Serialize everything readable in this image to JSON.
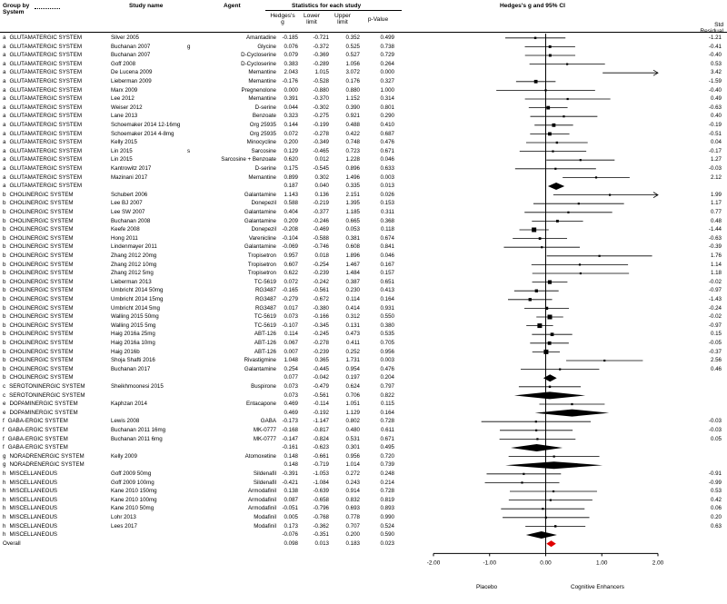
{
  "header": {
    "group_by": "Group by",
    "system": "System",
    "study_name": "Study name",
    "agent": "Agent",
    "stats_title": "Statistics for each study",
    "col_g": "Hedges's g",
    "col_lower": "Lower limit",
    "col_upper": "Upper limit",
    "col_p": "p-Value",
    "plot_title": "Hedges's g and 95% CI",
    "std_residual": "Std Residual"
  },
  "footer": {
    "left_label": "Placebo",
    "right_label": "Cognitive Enhancers"
  },
  "chart_data": {
    "type": "forest",
    "title": "Hedges's g and 95% CI",
    "xlim": [
      -2,
      2
    ],
    "x_ticks": [
      "-2.00",
      "-1.00",
      "0.00",
      "1.00",
      "2.00"
    ],
    "rows": [
      {
        "group": "a",
        "system": "GLUTAMATERGIC SYSTEM",
        "study": "Silver 2005",
        "agent": "Amantadine",
        "g": "-0.185",
        "lower": "-0.721",
        "upper": "0.352",
        "p": "0.499",
        "resid": "-1.21",
        "kind": "study"
      },
      {
        "group": "a",
        "system": "GLUTAMATERGIC SYSTEM",
        "study": "Buchanan 2007",
        "mark": "g",
        "agent": "Glycine",
        "g": "0.076",
        "lower": "-0.372",
        "upper": "0.525",
        "p": "0.738",
        "resid": "-0.41",
        "kind": "study"
      },
      {
        "group": "a",
        "system": "GLUTAMATERGIC SYSTEM",
        "study": "Buchanan 2007",
        "agent": "D-Cycloserine",
        "g": "0.079",
        "lower": "-0.369",
        "upper": "0.527",
        "p": "0.729",
        "resid": "-0.40",
        "kind": "study"
      },
      {
        "group": "a",
        "system": "GLUTAMATERGIC SYSTEM",
        "study": "Goff 2008",
        "agent": "D-Cycloserine",
        "g": "0.383",
        "lower": "-0.289",
        "upper": "1.056",
        "p": "0.264",
        "resid": "0.53",
        "kind": "study"
      },
      {
        "group": "a",
        "system": "GLUTAMATERGIC SYSTEM",
        "study": "De Lucena 2009",
        "agent": "Memantine",
        "g": "2.043",
        "lower": "1.015",
        "upper": "3.072",
        "p": "0.000",
        "resid": "3.42",
        "kind": "study"
      },
      {
        "group": "a",
        "system": "GLUTAMATERGIC SYSTEM",
        "study": "Lieberman 2009",
        "agent": "Memantine",
        "g": "-0.176",
        "lower": "-0.528",
        "upper": "0.176",
        "p": "0.327",
        "resid": "-1.59",
        "kind": "study"
      },
      {
        "group": "a",
        "system": "GLUTAMATERGIC SYSTEM",
        "study": "Marx 2009",
        "agent": "Pregnenolone",
        "g": "0.000",
        "lower": "-0.880",
        "upper": "0.880",
        "p": "1.000",
        "resid": "-0.40",
        "kind": "study"
      },
      {
        "group": "a",
        "system": "GLUTAMATERGIC SYSTEM",
        "study": "Lee 2012",
        "agent": "Memantine",
        "g": "0.391",
        "lower": "-0.370",
        "upper": "1.152",
        "p": "0.314",
        "resid": "0.49",
        "kind": "study"
      },
      {
        "group": "a",
        "system": "GLUTAMATERGIC SYSTEM",
        "study": "Weiser 2012",
        "agent": "D-serine",
        "g": "0.044",
        "lower": "-0.302",
        "upper": "0.390",
        "p": "0.801",
        "resid": "-0.63",
        "kind": "study"
      },
      {
        "group": "a",
        "system": "GLUTAMATERGIC SYSTEM",
        "study": "Lane 2013",
        "agent": "Benzoate",
        "g": "0.323",
        "lower": "-0.275",
        "upper": "0.921",
        "p": "0.290",
        "resid": "0.40",
        "kind": "study"
      },
      {
        "group": "a",
        "system": "GLUTAMATERGIC SYSTEM",
        "study": "Schoemaker 2014 12-16mg",
        "agent": "Org 25935",
        "g": "0.144",
        "lower": "-0.199",
        "upper": "0.488",
        "p": "0.410",
        "resid": "-0.19",
        "kind": "study"
      },
      {
        "group": "a",
        "system": "GLUTAMATERGIC SYSTEM",
        "study": "Schoemaker 2014 4-8mg",
        "agent": "Org 25935",
        "g": "0.072",
        "lower": "-0.278",
        "upper": "0.422",
        "p": "0.687",
        "resid": "-0.51",
        "kind": "study"
      },
      {
        "group": "a",
        "system": "GLUTAMATERGIC SYSTEM",
        "study": "Kelly 2015",
        "agent": "Minocycline",
        "g": "0.200",
        "lower": "-0.349",
        "upper": "0.748",
        "p": "0.476",
        "resid": "0.04",
        "kind": "study"
      },
      {
        "group": "a",
        "system": "GLUTAMATERGIC SYSTEM",
        "study": "Lin 2015",
        "mark": "s",
        "agent": "Sarcosine",
        "g": "0.129",
        "lower": "-0.465",
        "upper": "0.723",
        "p": "0.671",
        "resid": "-0.17",
        "kind": "study"
      },
      {
        "group": "a",
        "system": "GLUTAMATERGIC SYSTEM",
        "study": "Lin 2015",
        "agent": "Sarcosine + Benzoate",
        "g": "0.620",
        "lower": "0.012",
        "upper": "1.228",
        "p": "0.046",
        "resid": "1.27",
        "kind": "study"
      },
      {
        "group": "a",
        "system": "GLUTAMATERGIC SYSTEM",
        "study": "Kantrowitz 2017",
        "agent": "D-serine",
        "g": "0.175",
        "lower": "-0.545",
        "upper": "0.896",
        "p": "0.633",
        "resid": "-0.03",
        "kind": "study"
      },
      {
        "group": "a",
        "system": "GLUTAMATERGIC SYSTEM",
        "study": "Mazinani 2017",
        "agent": "Memantine",
        "g": "0.899",
        "lower": "0.302",
        "upper": "1.496",
        "p": "0.003",
        "resid": "2.12",
        "kind": "study"
      },
      {
        "group": "a",
        "system": "GLUTAMATERGIC SYSTEM",
        "study": "",
        "agent": "",
        "g": "0.187",
        "lower": "0.040",
        "upper": "0.335",
        "p": "0.013",
        "resid": "",
        "kind": "subtotal"
      },
      {
        "group": "b",
        "system": "CHOLINERGIC SYSTEM",
        "study": "Schubert 2006",
        "agent": "Galantamine",
        "g": "1.143",
        "lower": "0.136",
        "upper": "2.151",
        "p": "0.026",
        "resid": "1.99",
        "kind": "study"
      },
      {
        "group": "b",
        "system": "CHOLINERGIC SYSTEM",
        "study": "Lee BJ 2007",
        "agent": "Donepezil",
        "g": "0.588",
        "lower": "-0.219",
        "upper": "1.395",
        "p": "0.153",
        "resid": "1.17",
        "kind": "study"
      },
      {
        "group": "b",
        "system": "CHOLINERGIC SYSTEM",
        "study": "Lee SW 2007",
        "agent": "Galantamine",
        "g": "0.404",
        "lower": "-0.377",
        "upper": "1.185",
        "p": "0.311",
        "resid": "0.77",
        "kind": "study"
      },
      {
        "group": "b",
        "system": "CHOLINERGIC SYSTEM",
        "study": "Buchanan 2008",
        "agent": "Galantamine",
        "g": "0.209",
        "lower": "-0.246",
        "upper": "0.665",
        "p": "0.368",
        "resid": "0.48",
        "kind": "study"
      },
      {
        "group": "b",
        "system": "CHOLINERGIC SYSTEM",
        "study": "Keefe 2008",
        "agent": "Donepezil",
        "g": "-0.208",
        "lower": "-0.469",
        "upper": "0.053",
        "p": "0.118",
        "resid": "-1.44",
        "kind": "study"
      },
      {
        "group": "b",
        "system": "CHOLINERGIC SYSTEM",
        "study": "Hong 2011",
        "agent": "Varenicline",
        "g": "-0.104",
        "lower": "-0.588",
        "upper": "0.381",
        "p": "0.674",
        "resid": "-0.63",
        "kind": "study"
      },
      {
        "group": "b",
        "system": "CHOLINERGIC SYSTEM",
        "study": "Lindenmayer 2011",
        "agent": "Galantamine",
        "g": "-0.069",
        "lower": "-0.746",
        "upper": "0.608",
        "p": "0.841",
        "resid": "-0.39",
        "kind": "study"
      },
      {
        "group": "b",
        "system": "CHOLINERGIC SYSTEM",
        "study": "Zhang 2012 20mg",
        "agent": "Tropisetron",
        "g": "0.957",
        "lower": "0.018",
        "upper": "1.896",
        "p": "0.046",
        "resid": "1.76",
        "kind": "study"
      },
      {
        "group": "b",
        "system": "CHOLINERGIC SYSTEM",
        "study": "Zhang 2012 10mg",
        "agent": "Tropisetron",
        "g": "0.607",
        "lower": "-0.254",
        "upper": "1.467",
        "p": "0.167",
        "resid": "1.14",
        "kind": "study"
      },
      {
        "group": "b",
        "system": "CHOLINERGIC SYSTEM",
        "study": "Zhang 2012 5mg",
        "agent": "Tropisetron",
        "g": "0.622",
        "lower": "-0.239",
        "upper": "1.484",
        "p": "0.157",
        "resid": "1.18",
        "kind": "study"
      },
      {
        "group": "b",
        "system": "CHOLINERGIC SYSTEM",
        "study": "Lieberman 2013",
        "agent": "TC-5619",
        "g": "0.072",
        "lower": "-0.242",
        "upper": "0.387",
        "p": "0.651",
        "resid": "-0.02",
        "kind": "study"
      },
      {
        "group": "b",
        "system": "CHOLINERGIC SYSTEM",
        "study": "Umbricht 2014 50mg",
        "agent": "RG3487",
        "g": "-0.165",
        "lower": "-0.561",
        "upper": "0.230",
        "p": "0.413",
        "resid": "-0.97",
        "kind": "study"
      },
      {
        "group": "b",
        "system": "CHOLINERGIC SYSTEM",
        "study": "Umbricht 2014 15mg",
        "agent": "RG3487",
        "g": "-0.279",
        "lower": "-0.672",
        "upper": "0.114",
        "p": "0.164",
        "resid": "-1.43",
        "kind": "study"
      },
      {
        "group": "b",
        "system": "CHOLINERGIC SYSTEM",
        "study": "Umbricht 2014 5mg",
        "agent": "RG3487",
        "g": "0.017",
        "lower": "-0.380",
        "upper": "0.414",
        "p": "0.931",
        "resid": "-0.24",
        "kind": "study"
      },
      {
        "group": "b",
        "system": "CHOLINERGIC SYSTEM",
        "study": "Walling 2015 50mg",
        "agent": "TC-5619",
        "g": "0.073",
        "lower": "-0.166",
        "upper": "0.312",
        "p": "0.550",
        "resid": "-0.02",
        "kind": "study"
      },
      {
        "group": "b",
        "system": "CHOLINERGIC SYSTEM",
        "study": "Walling 2015 5mg",
        "agent": "TC-5619",
        "g": "-0.107",
        "lower": "-0.345",
        "upper": "0.131",
        "p": "0.380",
        "resid": "-0.97",
        "kind": "study"
      },
      {
        "group": "b",
        "system": "CHOLINERGIC SYSTEM",
        "study": "Haig 2016a 25mg",
        "agent": "ABT-126",
        "g": "0.114",
        "lower": "-0.245",
        "upper": "0.473",
        "p": "0.535",
        "resid": "0.15",
        "kind": "study"
      },
      {
        "group": "b",
        "system": "CHOLINERGIC SYSTEM",
        "study": "Haig 2016a 10mg",
        "agent": "ABT-126",
        "g": "0.067",
        "lower": "-0.278",
        "upper": "0.411",
        "p": "0.705",
        "resid": "-0.05",
        "kind": "study"
      },
      {
        "group": "b",
        "system": "CHOLINERGIC SYSTEM",
        "study": "Haig 2016b",
        "agent": "ABT-126",
        "g": "0.007",
        "lower": "-0.239",
        "upper": "0.252",
        "p": "0.956",
        "resid": "-0.37",
        "kind": "study"
      },
      {
        "group": "b",
        "system": "CHOLINERGIC SYSTEM",
        "study": "Shoja Shafti 2016",
        "agent": "Rivastigmine",
        "g": "1.048",
        "lower": "0.365",
        "upper": "1.731",
        "p": "0.003",
        "resid": "2.56",
        "kind": "study"
      },
      {
        "group": "b",
        "system": "CHOLINERGIC SYSTEM",
        "study": "Buchanan 2017",
        "agent": "Galantamine",
        "g": "0.254",
        "lower": "-0.445",
        "upper": "0.954",
        "p": "0.476",
        "resid": "0.46",
        "kind": "study"
      },
      {
        "group": "b",
        "system": "CHOLINERGIC SYSTEM",
        "study": "",
        "agent": "",
        "g": "0.077",
        "lower": "-0.042",
        "upper": "0.197",
        "p": "0.204",
        "resid": "",
        "kind": "subtotal"
      },
      {
        "group": "c",
        "system": "SEROTONINERGIC SYSTEM",
        "study": "Sheikhmoonesi 2015",
        "agent": "Buspirone",
        "g": "0.073",
        "lower": "-0.479",
        "upper": "0.624",
        "p": "0.797",
        "resid": "",
        "kind": "study"
      },
      {
        "group": "c",
        "system": "SEROTONINERGIC SYSTEM",
        "study": "",
        "agent": "",
        "g": "0.073",
        "lower": "-0.561",
        "upper": "0.706",
        "p": "0.822",
        "resid": "",
        "kind": "subtotal"
      },
      {
        "group": "e",
        "system": "DOPAMINERGIC SYSTEM",
        "study": "Kaphzan 2014",
        "agent": "Entacapone",
        "g": "0.469",
        "lower": "-0.114",
        "upper": "1.051",
        "p": "0.115",
        "resid": "",
        "kind": "study"
      },
      {
        "group": "e",
        "system": "DOPAMINERGIC SYSTEM",
        "study": "",
        "agent": "",
        "g": "0.469",
        "lower": "-0.192",
        "upper": "1.129",
        "p": "0.164",
        "resid": "",
        "kind": "subtotal"
      },
      {
        "group": "f",
        "system": "GABA-ERGIC SYSTEM",
        "study": "Lewis 2008",
        "agent": "GABA",
        "g": "-0.173",
        "lower": "-1.147",
        "upper": "0.802",
        "p": "0.728",
        "resid": "-0.03",
        "kind": "study"
      },
      {
        "group": "f",
        "system": "GABA-ERGIC SYSTEM",
        "study": "Buchanan 2011 16mg",
        "agent": "MK-0777",
        "g": "-0.168",
        "lower": "-0.817",
        "upper": "0.480",
        "p": "0.611",
        "resid": "-0.03",
        "kind": "study"
      },
      {
        "group": "f",
        "system": "GABA-ERGIC SYSTEM",
        "study": "Buchanan 2011 6mg",
        "agent": "MK-0777",
        "g": "-0.147",
        "lower": "-0.824",
        "upper": "0.531",
        "p": "0.671",
        "resid": "0.05",
        "kind": "study"
      },
      {
        "group": "f",
        "system": "GABA-ERGIC SYSTEM",
        "study": "",
        "agent": "",
        "g": "-0.161",
        "lower": "-0.623",
        "upper": "0.301",
        "p": "0.495",
        "resid": "",
        "kind": "subtotal"
      },
      {
        "group": "g",
        "system": "NORADRENERGIC SYSTEM",
        "study": "Kelly 2009",
        "agent": "Atomoxetine",
        "g": "0.148",
        "lower": "-0.661",
        "upper": "0.956",
        "p": "0.720",
        "resid": "",
        "kind": "study"
      },
      {
        "group": "g",
        "system": "NORADRENERGIC SYSTEM",
        "study": "",
        "agent": "",
        "g": "0.148",
        "lower": "-0.719",
        "upper": "1.014",
        "p": "0.739",
        "resid": "",
        "kind": "subtotal"
      },
      {
        "group": "h",
        "system": "MISCELLANEOUS",
        "study": "Goff 2009 50mg",
        "agent": "Sildenafil",
        "g": "-0.391",
        "lower": "-1.053",
        "upper": "0.272",
        "p": "0.248",
        "resid": "-0.91",
        "kind": "study"
      },
      {
        "group": "h",
        "system": "MISCELLANEOUS",
        "study": "Goff 2009 100mg",
        "agent": "Sildenafil",
        "g": "-0.421",
        "lower": "-1.084",
        "upper": "0.243",
        "p": "0.214",
        "resid": "-0.99",
        "kind": "study"
      },
      {
        "group": "h",
        "system": "MISCELLANEOUS",
        "study": "Kane 2010 150mg",
        "agent": "Armodafinil",
        "g": "0.138",
        "lower": "-0.639",
        "upper": "0.914",
        "p": "0.728",
        "resid": "0.53",
        "kind": "study"
      },
      {
        "group": "h",
        "system": "MISCELLANEOUS",
        "study": "Kane 2010 100mg",
        "agent": "Armodafinil",
        "g": "0.087",
        "lower": "-0.658",
        "upper": "0.832",
        "p": "0.819",
        "resid": "0.42",
        "kind": "study"
      },
      {
        "group": "h",
        "system": "MISCELLANEOUS",
        "study": "Kane 2010 50mg",
        "agent": "Armodafinil",
        "g": "-0.051",
        "lower": "-0.796",
        "upper": "0.693",
        "p": "0.893",
        "resid": "0.06",
        "kind": "study"
      },
      {
        "group": "h",
        "system": "MISCELLANEOUS",
        "study": "Lohr 2013",
        "agent": "Modafinil",
        "g": "0.005",
        "lower": "-0.768",
        "upper": "0.778",
        "p": "0.990",
        "resid": "0.20",
        "kind": "study"
      },
      {
        "group": "h",
        "system": "MISCELLANEOUS",
        "study": "Lees 2017",
        "agent": "Modafinil",
        "g": "0.173",
        "lower": "-0.362",
        "upper": "0.707",
        "p": "0.524",
        "resid": "0.63",
        "kind": "study"
      },
      {
        "group": "h",
        "system": "MISCELLANEOUS",
        "study": "",
        "agent": "",
        "g": "-0.076",
        "lower": "-0.351",
        "upper": "0.200",
        "p": "0.590",
        "resid": "",
        "kind": "subtotal"
      },
      {
        "group": "",
        "system": "Overall",
        "study": "",
        "agent": "",
        "g": "0.098",
        "lower": "0.013",
        "upper": "0.183",
        "p": "0.023",
        "resid": "",
        "kind": "overall"
      }
    ]
  }
}
